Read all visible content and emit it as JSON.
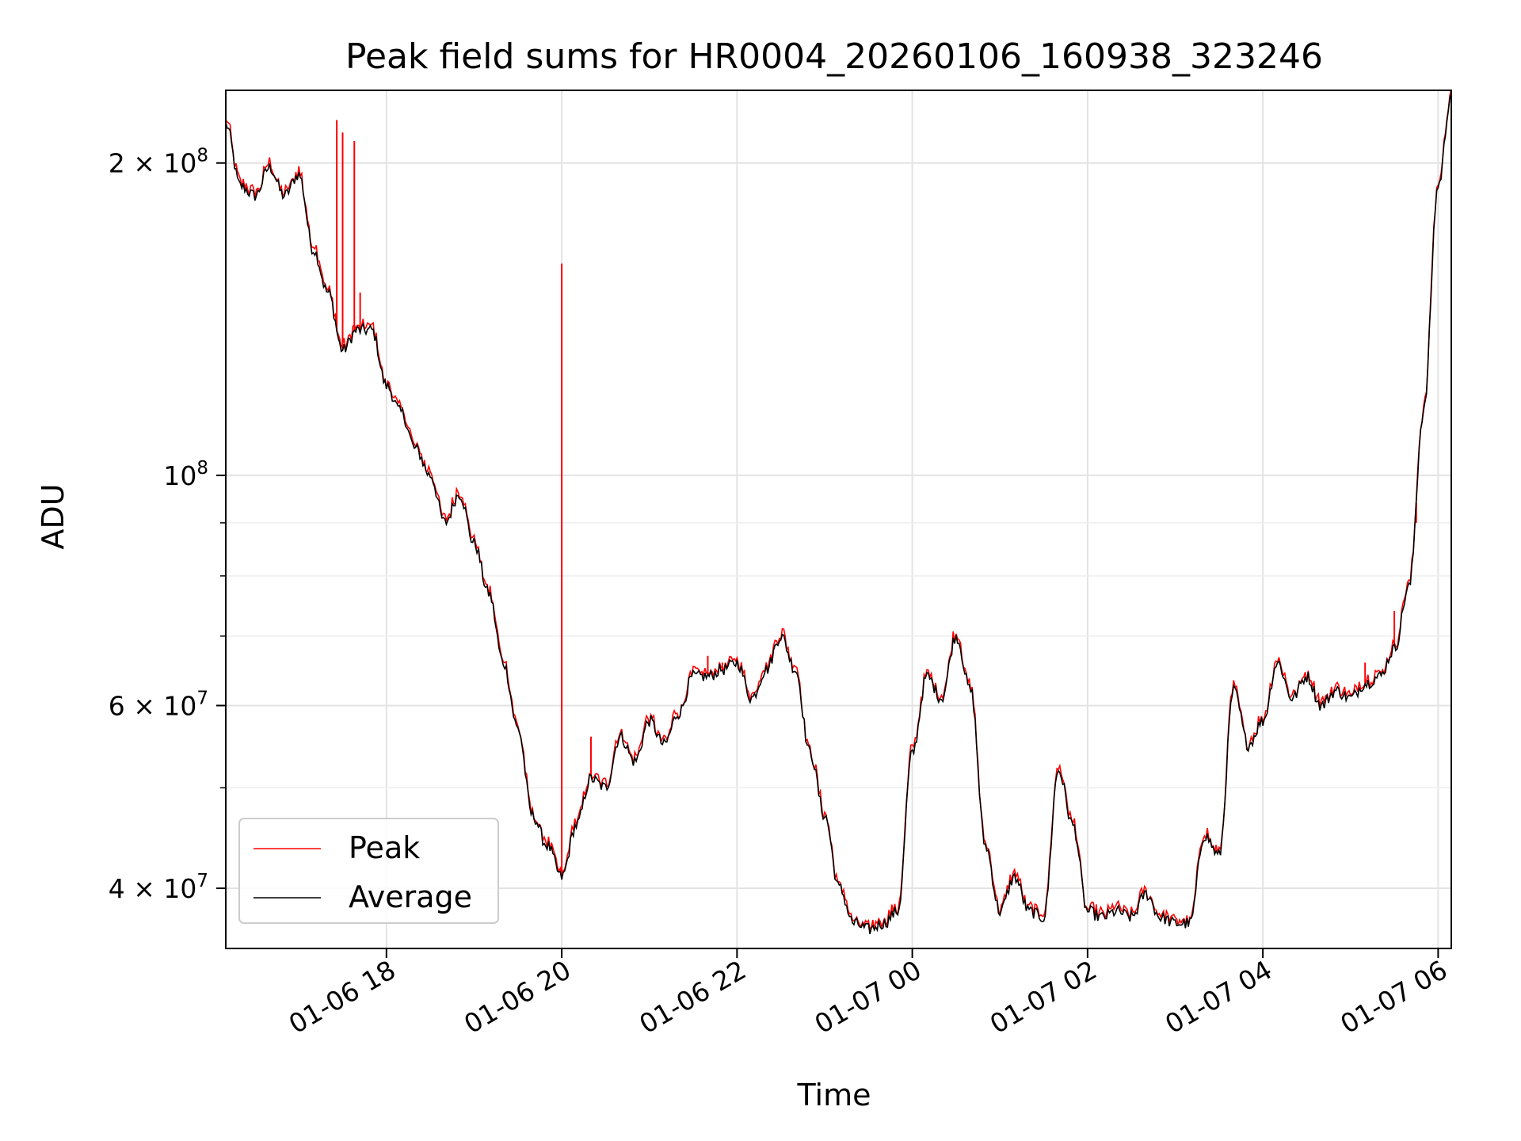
{
  "chart_data": {
    "type": "line",
    "title": "Peak field sums for HR0004_20260106_160938_323246",
    "xlabel": "Time",
    "ylabel": "ADU",
    "yscale": "log",
    "ylim": [
      35000000,
      235000000
    ],
    "xlim": [
      "01-06 16:10",
      "01-07 06:09"
    ],
    "grid": true,
    "legend": "bottom-left",
    "x_ticks": [
      "01-06 18",
      "01-06 20",
      "01-06 22",
      "01-07 00",
      "01-07 02",
      "01-07 04",
      "01-07 06"
    ],
    "y_tick_labels": [
      {
        "value": 40000000,
        "mantissa": "4",
        "exponent": "7"
      },
      {
        "value": 60000000,
        "mantissa": "6",
        "exponent": "7"
      },
      {
        "value": 100000000,
        "mantissa": "",
        "exponent": "8"
      },
      {
        "value": 200000000,
        "mantissa": "2",
        "exponent": "8"
      }
    ],
    "y_minor_ticks": [
      50000000,
      70000000,
      80000000,
      90000000
    ],
    "series": [
      {
        "name": "Average",
        "color": "#000000",
        "points": [
          [
            "01-06 16:10",
            218000000
          ],
          [
            "01-06 16:20",
            190000000
          ],
          [
            "01-06 16:30",
            186000000
          ],
          [
            "01-06 16:40",
            198000000
          ],
          [
            "01-06 16:50",
            186000000
          ],
          [
            "01-06 17:00",
            195000000
          ],
          [
            "01-06 17:10",
            165000000
          ],
          [
            "01-06 17:20",
            150000000
          ],
          [
            "01-06 17:30",
            132000000
          ],
          [
            "01-06 17:40",
            138000000
          ],
          [
            "01-06 17:50",
            138000000
          ],
          [
            "01-06 18:00",
            122000000
          ],
          [
            "01-06 18:10",
            115000000
          ],
          [
            "01-06 18:20",
            106000000
          ],
          [
            "01-06 18:30",
            100000000
          ],
          [
            "01-06 18:40",
            90000000
          ],
          [
            "01-06 18:50",
            96000000
          ],
          [
            "01-06 19:00",
            86000000
          ],
          [
            "01-06 19:10",
            77000000
          ],
          [
            "01-06 19:20",
            66000000
          ],
          [
            "01-06 19:30",
            57000000
          ],
          [
            "01-06 19:40",
            47000000
          ],
          [
            "01-06 19:50",
            44000000
          ],
          [
            "01-06 20:00",
            41000000
          ],
          [
            "01-06 20:10",
            46000000
          ],
          [
            "01-06 20:20",
            51000000
          ],
          [
            "01-06 20:30",
            50000000
          ],
          [
            "01-06 20:40",
            56000000
          ],
          [
            "01-06 20:50",
            53000000
          ],
          [
            "01-06 21:00",
            58000000
          ],
          [
            "01-06 21:10",
            55000000
          ],
          [
            "01-06 21:20",
            59000000
          ],
          [
            "01-06 21:30",
            64000000
          ],
          [
            "01-06 21:40",
            64000000
          ],
          [
            "01-06 21:50",
            65000000
          ],
          [
            "01-06 22:00",
            66000000
          ],
          [
            "01-06 22:10",
            61000000
          ],
          [
            "01-06 22:20",
            65000000
          ],
          [
            "01-06 22:30",
            70000000
          ],
          [
            "01-06 22:40",
            65000000
          ],
          [
            "01-06 22:50",
            54000000
          ],
          [
            "01-06 23:00",
            47000000
          ],
          [
            "01-06 23:10",
            40000000
          ],
          [
            "01-06 23:20",
            37000000
          ],
          [
            "01-06 23:30",
            36500000
          ],
          [
            "01-06 23:40",
            37000000
          ],
          [
            "01-06 23:50",
            38000000
          ],
          [
            "01-07 00:00",
            54000000
          ],
          [
            "01-07 00:10",
            64000000
          ],
          [
            "01-07 00:20",
            61000000
          ],
          [
            "01-07 00:30",
            70000000
          ],
          [
            "01-07 00:40",
            62000000
          ],
          [
            "01-07 00:50",
            44000000
          ],
          [
            "01-07 01:00",
            38000000
          ],
          [
            "01-07 01:10",
            41000000
          ],
          [
            "01-07 01:20",
            38000000
          ],
          [
            "01-07 01:30",
            37500000
          ],
          [
            "01-07 01:40",
            52000000
          ],
          [
            "01-07 01:50",
            46000000
          ],
          [
            "01-07 02:00",
            38000000
          ],
          [
            "01-07 02:10",
            37500000
          ],
          [
            "01-07 02:20",
            38000000
          ],
          [
            "01-07 02:30",
            37500000
          ],
          [
            "01-07 02:40",
            39500000
          ],
          [
            "01-07 02:50",
            37500000
          ],
          [
            "01-07 03:00",
            37000000
          ],
          [
            "01-07 03:10",
            37000000
          ],
          [
            "01-07 03:20",
            45000000
          ],
          [
            "01-07 03:30",
            43000000
          ],
          [
            "01-07 03:40",
            62000000
          ],
          [
            "01-07 03:50",
            55000000
          ],
          [
            "01-07 04:00",
            58000000
          ],
          [
            "01-07 04:10",
            66000000
          ],
          [
            "01-07 04:20",
            61000000
          ],
          [
            "01-07 04:30",
            64000000
          ],
          [
            "01-07 04:40",
            60000000
          ],
          [
            "01-07 04:50",
            62000000
          ],
          [
            "01-07 05:00",
            61000000
          ],
          [
            "01-07 05:10",
            63000000
          ],
          [
            "01-07 05:20",
            64000000
          ],
          [
            "01-07 05:30",
            68000000
          ],
          [
            "01-07 05:40",
            78000000
          ],
          [
            "01-07 05:50",
            115000000
          ],
          [
            "01-07 06:00",
            190000000
          ],
          [
            "01-07 06:09",
            233000000
          ]
        ]
      },
      {
        "name": "Peak",
        "color": "#ff0000",
        "spikes": [
          [
            "01-06 17:26",
            220000000
          ],
          [
            "01-06 17:30",
            214000000
          ],
          [
            "01-06 17:38",
            210000000
          ],
          [
            "01-06 17:42",
            150000000
          ],
          [
            "01-06 20:00",
            160000000
          ],
          [
            "01-06 20:20",
            56000000
          ],
          [
            "01-06 21:40",
            67000000
          ],
          [
            "01-06 21:50",
            66000000
          ],
          [
            "01-07 05:10",
            66000000
          ],
          [
            "01-07 05:30",
            74000000
          ],
          [
            "01-07 05:45",
            90000000
          ]
        ]
      }
    ]
  }
}
